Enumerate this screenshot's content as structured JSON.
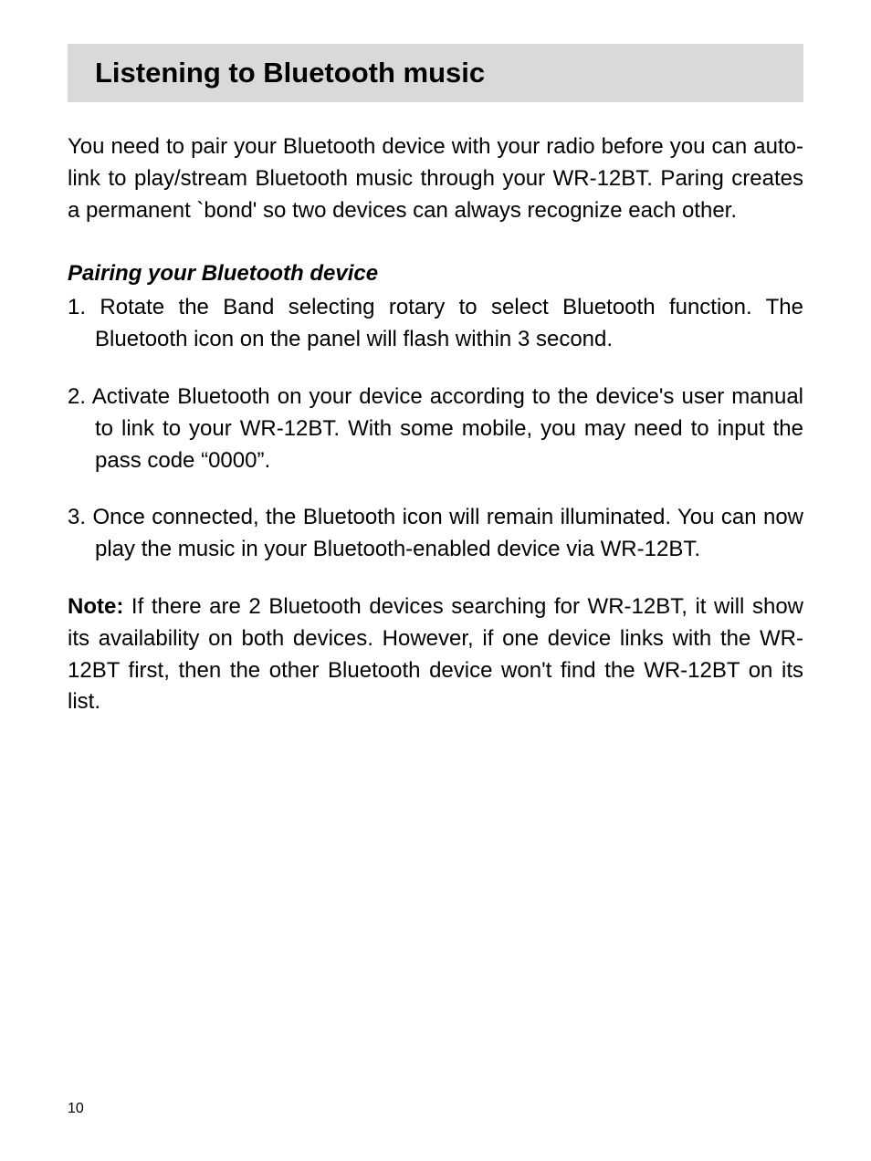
{
  "heading": "Listening to Bluetooth music",
  "intro": "You need to pair your Bluetooth device with your radio before you can auto-link to play/stream Bluetooth music through your WR-12BT. Paring creates a permanent `bond' so two devices can always recognize each other.",
  "subheading": "Pairing your Bluetooth device",
  "steps": [
    {
      "num": "1.",
      "text": "Rotate the Band selecting rotary  to select Bluetooth function. The Bluetooth icon on the panel will flash within 3 second."
    },
    {
      "num": "2.",
      "text": "Activate Bluetooth on your device according to the device's user manual to link to your WR-12BT. With some mobile, you may need to input the pass code “0000”."
    },
    {
      "num": "3.",
      "text": "Once connected, the Bluetooth icon will remain illuminated. You can now play the music in your Bluetooth-enabled device via WR-12BT."
    }
  ],
  "note_label": "Note:",
  "note_text": " If there are 2 Bluetooth devices searching for WR-12BT, it will show its availability on both devices. However, if one device links with the WR-12BT first, then the other Bluetooth device won't find the WR-12BT on its list.",
  "page_number": "10",
  "colors": {
    "heading_bg": "#d9d9d9",
    "text": "#000000",
    "page_bg": "#ffffff"
  },
  "typography": {
    "heading_fontsize": 31,
    "body_fontsize": 24,
    "pagenum_fontsize": 16,
    "font_family": "Arial"
  }
}
